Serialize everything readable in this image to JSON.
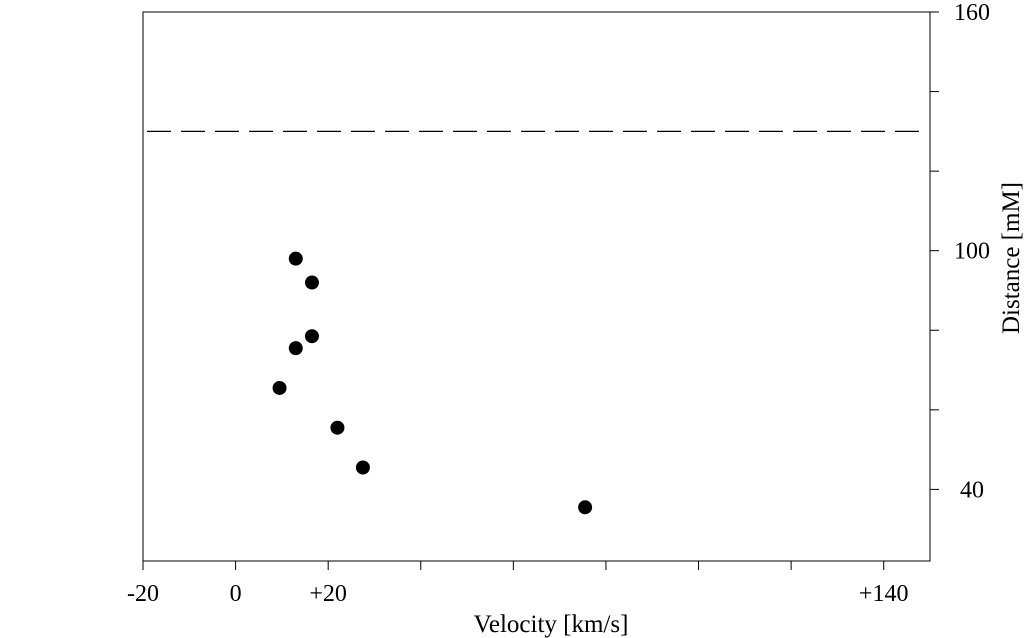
{
  "chart_data": {
    "type": "scatter",
    "xlabel": "Velocity [km/s]",
    "ylabel": "Distance [mM]",
    "xlim": [
      -20,
      150
    ],
    "ylim": [
      22,
      160
    ],
    "x_ticks": [
      -20,
      0,
      20,
      40,
      60,
      80,
      100,
      120,
      140
    ],
    "x_tick_labels": [
      {
        "value": -20,
        "label": "-20"
      },
      {
        "value": 0,
        "label": "0"
      },
      {
        "value": 20,
        "label": "+20"
      },
      {
        "value": 140,
        "label": "+140"
      }
    ],
    "y_ticks": [
      40,
      60,
      80,
      100,
      120,
      140,
      160
    ],
    "y_tick_labels": [
      {
        "value": 40,
        "label": "40"
      },
      {
        "value": 100,
        "label": "100"
      },
      {
        "value": 160,
        "label": "160"
      }
    ],
    "y_axis_side": "right",
    "grid": false,
    "reference_line": {
      "axis": "y",
      "value": 130,
      "style": "dashed"
    },
    "points": [
      {
        "x": 13,
        "y": 98
      },
      {
        "x": 16.5,
        "y": 92
      },
      {
        "x": 16.5,
        "y": 78.5
      },
      {
        "x": 13,
        "y": 75.5
      },
      {
        "x": 9.5,
        "y": 65.5
      },
      {
        "x": 22,
        "y": 55.5
      },
      {
        "x": 27.5,
        "y": 45.5
      },
      {
        "x": 75.5,
        "y": 35.5
      }
    ]
  }
}
